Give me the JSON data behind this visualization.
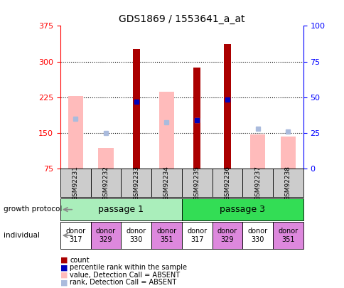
{
  "title": "GDS1869 / 1553641_a_at",
  "samples": [
    "GSM92231",
    "GSM92232",
    "GSM92233",
    "GSM92234",
    "GSM92235",
    "GSM92236",
    "GSM92237",
    "GSM92238"
  ],
  "count_values": [
    null,
    null,
    327,
    null,
    287,
    337,
    null,
    null
  ],
  "count_absent": [
    228,
    118,
    null,
    237,
    null,
    null,
    147,
    142
  ],
  "percentile_rank": [
    null,
    null,
    215,
    null,
    176,
    220,
    null,
    null
  ],
  "rank_absent": [
    180,
    149,
    null,
    172,
    176,
    null,
    158,
    153
  ],
  "ylim_left": [
    75,
    375
  ],
  "ylim_right": [
    0,
    100
  ],
  "left_ticks": [
    75,
    150,
    225,
    300,
    375
  ],
  "right_ticks": [
    0,
    25,
    50,
    75,
    100
  ],
  "passage1_indices": [
    0,
    1,
    2,
    3
  ],
  "passage3_indices": [
    4,
    5,
    6,
    7
  ],
  "donors": [
    "donor\n317",
    "donor\n329",
    "donor\n330",
    "donor\n351",
    "donor\n317",
    "donor\n329",
    "donor\n330",
    "donor\n351"
  ],
  "donor_colors": [
    "#ffffff",
    "#dd88dd",
    "#ffffff",
    "#dd88dd",
    "#ffffff",
    "#dd88dd",
    "#ffffff",
    "#dd88dd"
  ],
  "passage1_color": "#aaeebb",
  "passage3_color": "#33dd55",
  "count_color": "#aa0000",
  "absent_value_color": "#ffbbbb",
  "percentile_color": "#0000bb",
  "rank_absent_color": "#aabbdd",
  "sample_box_color": "#cccccc",
  "grid_color": "black",
  "bar_width": 0.5
}
